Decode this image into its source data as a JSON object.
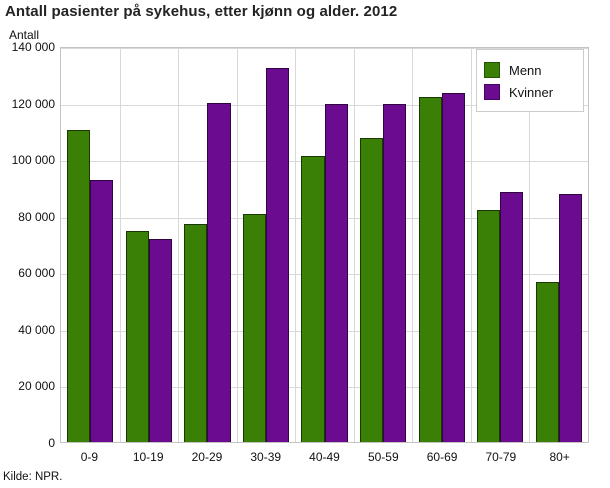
{
  "page": {
    "source": "Kilde: NPR."
  },
  "chart_data": {
    "type": "bar",
    "title": "Antall pasienter på sykehus, etter kjønn og alder. 2012",
    "ylabel": "Antall",
    "xlabel": "",
    "categories": [
      "0-9",
      "10-19",
      "20-29",
      "30-39",
      "40-49",
      "50-59",
      "60-69",
      "70-79",
      "80+"
    ],
    "series": [
      {
        "name": "Menn",
        "color": "#3a7f06",
        "values": [
          111000,
          75000,
          77500,
          81000,
          101500,
          108000,
          122500,
          82500,
          57000
        ]
      },
      {
        "name": "Kvinner",
        "color": "#6b0c90",
        "values": [
          93000,
          72000,
          120500,
          133000,
          120000,
          120000,
          124000,
          89000,
          88000
        ]
      }
    ],
    "ylim": [
      0,
      140000
    ],
    "ytick_step": 20000,
    "ytick_labels": [
      "0",
      "20 000",
      "40 000",
      "60 000",
      "80 000",
      "100 000",
      "120 000",
      "140 000"
    ],
    "grid": "on",
    "legend_position": "top-right"
  }
}
